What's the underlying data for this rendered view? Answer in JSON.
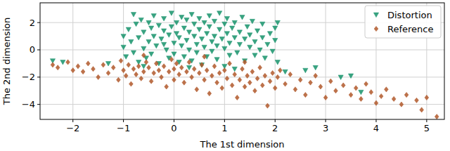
{
  "chart_data": {
    "type": "scatter",
    "x_label": "The 1st dimension",
    "y_label": "The 2nd dimension",
    "xlim": [
      -2.65,
      5.35
    ],
    "ylim": [
      -5.1,
      3.45
    ],
    "xticks": [
      -2,
      -1,
      0,
      1,
      2,
      3,
      4,
      5
    ],
    "yticks": [
      -4,
      -2,
      0,
      2
    ],
    "grid": true,
    "legend": "upper right",
    "series": [
      {
        "name": "Distortion",
        "color": "#16936b",
        "marker": "triangle_down",
        "x": [
          -2.4,
          -2.2,
          -1.0,
          -1.0,
          -0.95,
          -0.9,
          -0.85,
          -0.8,
          -0.8,
          -0.75,
          -0.7,
          -0.7,
          -0.65,
          -0.6,
          -0.6,
          -0.55,
          -0.5,
          -0.5,
          -0.45,
          -0.45,
          -0.4,
          -0.4,
          -0.35,
          -0.3,
          -0.3,
          -0.25,
          -0.2,
          -0.2,
          -0.15,
          -0.1,
          -0.1,
          -0.05,
          -0.05,
          0.0,
          0.0,
          0.05,
          0.05,
          0.1,
          0.1,
          0.15,
          0.15,
          0.2,
          0.2,
          0.25,
          0.25,
          0.3,
          0.3,
          0.35,
          0.35,
          0.4,
          0.4,
          0.45,
          0.45,
          0.5,
          0.5,
          0.55,
          0.55,
          0.6,
          0.6,
          0.65,
          0.65,
          0.7,
          0.7,
          0.75,
          0.75,
          0.8,
          0.8,
          0.85,
          0.85,
          0.9,
          0.9,
          0.95,
          1.0,
          1.0,
          1.0,
          1.05,
          1.05,
          1.1,
          1.1,
          1.15,
          1.2,
          1.2,
          1.25,
          1.3,
          1.3,
          1.35,
          1.4,
          1.4,
          1.45,
          1.5,
          1.5,
          1.55,
          1.6,
          1.6,
          1.65,
          1.7,
          1.75,
          1.75,
          1.8,
          1.85,
          1.9,
          1.95,
          2.0,
          2.0,
          2.05,
          2.05,
          -0.6,
          0.3,
          1.2,
          2.6,
          2.8,
          3.3,
          3.7,
          3.5,
          -1.3,
          2.2,
          -0.2
        ],
        "values": [
          -0.8,
          -0.9,
          0.2,
          1.0,
          -0.5,
          1.5,
          0.6,
          2.6,
          -0.2,
          1.9,
          0.9,
          -0.9,
          2.2,
          1.3,
          0.1,
          -0.6,
          2.0,
          0.6,
          1.6,
          -0.3,
          2.5,
          1.0,
          0.3,
          1.8,
          -1.0,
          0.8,
          2.3,
          1.4,
          0.0,
          1.1,
          -0.6,
          2.7,
          1.7,
          0.5,
          -0.3,
          2.0,
          1.2,
          0.9,
          -0.9,
          2.4,
          0.3,
          1.6,
          -0.5,
          2.2,
          0.7,
          1.3,
          0.0,
          2.6,
          -0.8,
          1.9,
          1.0,
          0.4,
          -0.2,
          2.3,
          1.5,
          0.8,
          -1.1,
          2.0,
          0.2,
          1.2,
          -0.5,
          2.5,
          1.7,
          0.6,
          -0.1,
          1.0,
          2.1,
          0.3,
          -0.7,
          1.5,
          2.7,
          0.8,
          1.9,
          0.1,
          -1.2,
          1.2,
          2.3,
          0.5,
          -0.4,
          1.6,
          0.9,
          2.0,
          -0.2,
          1.3,
          0.4,
          2.4,
          0.8,
          -0.8,
          1.7,
          0.2,
          1.1,
          2.1,
          0.6,
          -0.4,
          1.4,
          0.0,
          0.9,
          1.9,
          -0.6,
          0.4,
          1.2,
          -0.1,
          0.7,
          1.6,
          -0.9,
          2.0,
          -1.2,
          -1.3,
          -1.4,
          -1.5,
          -1.3,
          -2.0,
          -3.1,
          -1.9,
          -1.0,
          -1.6,
          0.4
        ]
      },
      {
        "name": "Reference",
        "color": "#b0582a",
        "marker": "diamond",
        "x": [
          -2.4,
          -2.3,
          -2.1,
          -2.0,
          -1.9,
          -1.8,
          -1.7,
          -1.6,
          -1.5,
          -1.4,
          -1.3,
          -1.2,
          -1.1,
          -1.05,
          -1.0,
          -0.95,
          -0.9,
          -0.85,
          -0.8,
          -0.75,
          -0.7,
          -0.65,
          -0.6,
          -0.55,
          -0.5,
          -0.45,
          -0.4,
          -0.35,
          -0.3,
          -0.25,
          -0.2,
          -0.15,
          -0.1,
          -0.05,
          0.0,
          0.0,
          0.05,
          0.1,
          0.15,
          0.2,
          0.25,
          0.3,
          0.35,
          0.4,
          0.45,
          0.5,
          0.55,
          0.6,
          0.65,
          0.7,
          0.75,
          0.8,
          0.85,
          0.9,
          0.95,
          1.0,
          1.05,
          1.1,
          1.15,
          1.2,
          1.25,
          1.3,
          1.35,
          1.4,
          1.45,
          1.5,
          1.55,
          1.6,
          1.65,
          1.7,
          1.75,
          1.8,
          1.85,
          1.9,
          1.95,
          2.0,
          2.05,
          2.1,
          2.2,
          2.3,
          2.4,
          2.5,
          2.6,
          2.7,
          2.8,
          2.9,
          3.0,
          3.1,
          3.2,
          3.35,
          3.5,
          3.6,
          3.7,
          3.8,
          3.9,
          4.0,
          4.1,
          4.2,
          4.35,
          4.5,
          4.6,
          4.8,
          4.9,
          5.0,
          5.2,
          -0.6,
          0.6,
          1.4
        ],
        "values": [
          -1.1,
          -1.3,
          -0.9,
          -1.5,
          -1.2,
          -1.6,
          -1.0,
          -1.4,
          -2.0,
          -1.1,
          -1.7,
          -1.3,
          -2.2,
          -0.8,
          -1.5,
          -1.9,
          -1.1,
          -2.5,
          -1.4,
          -1.8,
          -1.2,
          -2.1,
          -1.6,
          -0.9,
          -1.3,
          -2.3,
          -1.7,
          -1.0,
          -1.5,
          -2.0,
          -1.2,
          -2.7,
          -1.6,
          -0.7,
          -1.4,
          -2.2,
          -1.0,
          -1.8,
          -1.3,
          -2.4,
          -1.6,
          -0.9,
          -2.0,
          -1.4,
          -2.9,
          -1.7,
          -1.1,
          -2.2,
          -1.5,
          -3.2,
          -1.9,
          -1.2,
          -2.4,
          -1.7,
          -2.8,
          -1.5,
          -2.1,
          -1.0,
          -2.6,
          -1.8,
          -3.5,
          -2.2,
          -1.4,
          -2.7,
          -1.9,
          -2.4,
          -1.6,
          -3.0,
          -2.1,
          -1.3,
          -2.6,
          -1.9,
          -4.1,
          -2.3,
          -1.7,
          -2.8,
          -2.0,
          -1.5,
          -2.5,
          -1.8,
          -2.9,
          -2.2,
          -3.3,
          -2.4,
          -1.9,
          -2.7,
          -3.5,
          -2.3,
          -3.0,
          -2.6,
          -3.3,
          -2.8,
          -3.6,
          -2.5,
          -3.1,
          -3.9,
          -3.4,
          -2.9,
          -3.6,
          -4.0,
          -3.3,
          -3.7,
          -4.4,
          -3.5,
          -4.9,
          -0.4,
          -0.5,
          -0.9
        ]
      }
    ]
  }
}
